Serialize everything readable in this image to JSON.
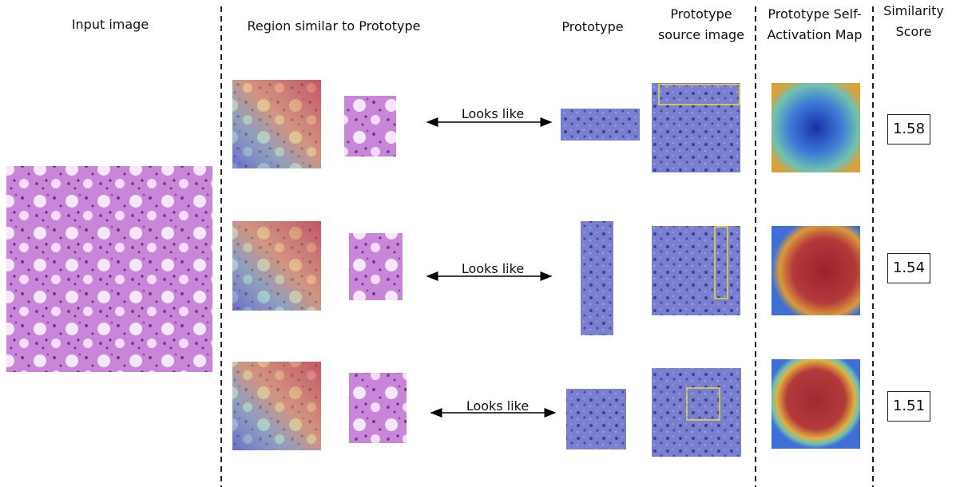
{
  "headers": [
    "Input image",
    "Region similar to Prototype",
    "Prototype",
    "Prototype source image",
    "Prototype Self-Activation Map",
    "Similarity Score"
  ],
  "rows": [
    {
      "relation": "Looks like",
      "score": 1.58
    },
    {
      "relation": "Looks like",
      "score": 1.54
    },
    {
      "relation": "Looks like",
      "score": 1.51
    }
  ]
}
